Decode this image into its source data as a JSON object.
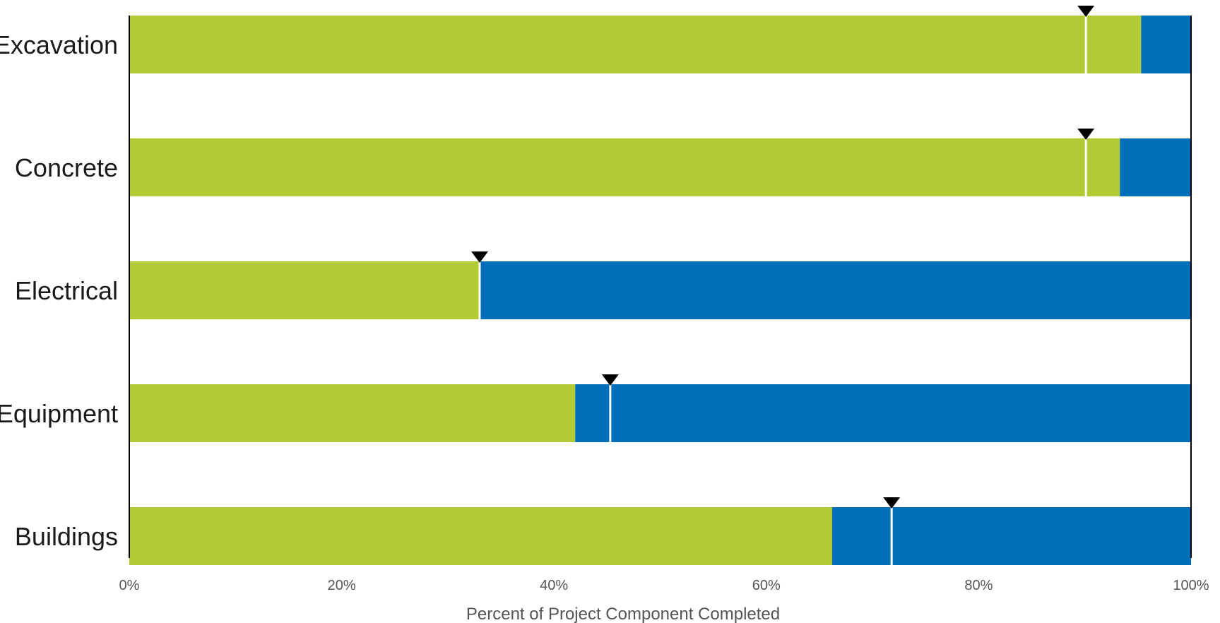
{
  "chart_data": {
    "type": "bar",
    "orientation": "horizontal",
    "stacked": true,
    "categories": [
      "Excavation",
      "Concrete",
      "Electrical",
      "Equipment",
      "Buildings"
    ],
    "series": [
      {
        "values": [
          95.3,
          93.3,
          33.0,
          42.0,
          66.2
        ]
      },
      {
        "values": [
          4.7,
          6.7,
          67.0,
          58.0,
          33.8
        ]
      }
    ],
    "markers": [
      90.1,
      90.1,
      33.0,
      45.3,
      71.8
    ],
    "xlabel": "Percent of Project Component Completed",
    "ylabel": "",
    "xlim": [
      0,
      100
    ],
    "x_ticks": [
      "0%",
      "20%",
      "40%",
      "60%",
      "80%",
      "100%"
    ],
    "grid": false,
    "legend": "none",
    "colors": {
      "completed": "#b2ca34",
      "remaining": "#006eb8",
      "marker": "#000000",
      "marker_line": "#ffffff",
      "axis": "#000000"
    }
  }
}
